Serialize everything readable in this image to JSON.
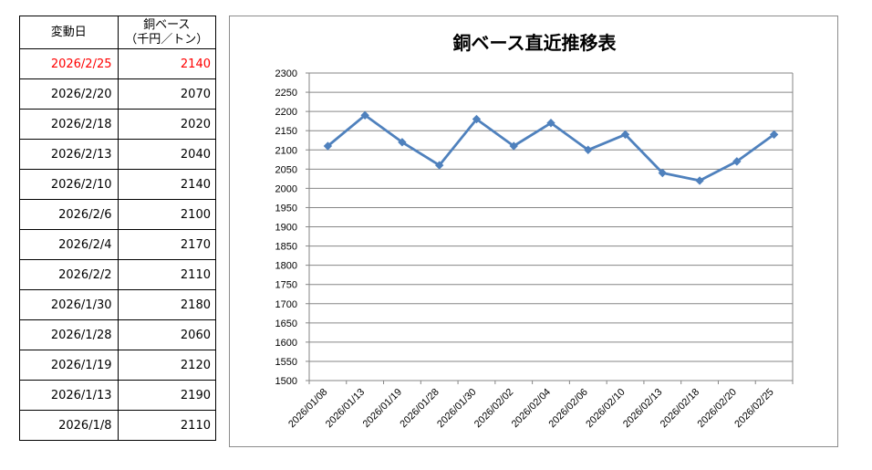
{
  "table": {
    "header_date": "変動日",
    "header_value_line1": "銅ベース",
    "header_value_line2": "（千円／トン）",
    "rows": [
      {
        "date": "2026/2/25",
        "value": "2140"
      },
      {
        "date": "2026/2/20",
        "value": "2070"
      },
      {
        "date": "2026/2/18",
        "value": "2020"
      },
      {
        "date": "2026/2/13",
        "value": "2040"
      },
      {
        "date": "2026/2/10",
        "value": "2140"
      },
      {
        "date": "2026/2/6",
        "value": "2100"
      },
      {
        "date": "2026/2/4",
        "value": "2170"
      },
      {
        "date": "2026/2/2",
        "value": "2110"
      },
      {
        "date": "2026/1/30",
        "value": "2180"
      },
      {
        "date": "2026/1/28",
        "value": "2060"
      },
      {
        "date": "2026/1/19",
        "value": "2120"
      },
      {
        "date": "2026/1/13",
        "value": "2190"
      },
      {
        "date": "2026/1/8",
        "value": "2110"
      }
    ],
    "highlight_color": "#ff0000"
  },
  "chart_data": {
    "type": "line",
    "title": "銅ベース直近推移表",
    "xlabel": "",
    "ylabel": "",
    "categories": [
      "2026/01/08",
      "2026/01/13",
      "2026/01/19",
      "2026/01/28",
      "2026/01/30",
      "2026/02/02",
      "2026/02/04",
      "2026/02/06",
      "2026/02/10",
      "2026/02/13",
      "2026/02/18",
      "2026/02/20",
      "2026/02/25"
    ],
    "series": [
      {
        "values": [
          2110,
          2190,
          2120,
          2060,
          2180,
          2110,
          2170,
          2100,
          2140,
          2040,
          2020,
          2070,
          2140
        ],
        "color": "#4f81bd",
        "marker": "diamond"
      }
    ],
    "ylim": [
      1500,
      2300
    ],
    "ytick_step": 50,
    "grid": true,
    "legend": "none"
  }
}
